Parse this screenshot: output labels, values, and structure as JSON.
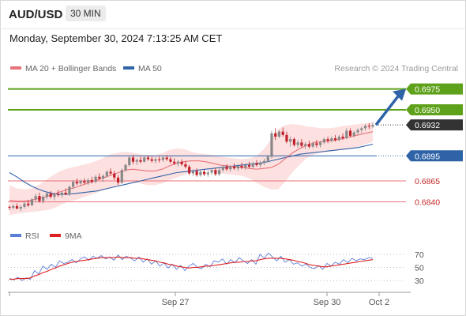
{
  "header": {
    "symbol": "AUD/USD",
    "timeframe": "30 MIN",
    "datetime": "Monday, September 30, 2024 7:13:25 AM CET"
  },
  "legend": {
    "ma20_label": "MA 20 + Bollinger Bands",
    "ma50_label": "MA 50",
    "copyright": "Research © 2024 Trading Central",
    "rsi_label": "RSI",
    "ma9_label": "9MA"
  },
  "colors": {
    "ma20": "#e8737a",
    "ma50": "#2f63a8",
    "bands": "#fde0e0",
    "resistance": "#5ea11a",
    "pivot": "#2f63a8",
    "support": "#e8737a",
    "current": "#333333",
    "arrow": "#2f63a8",
    "rsi": "#5b7fd6",
    "rsi_ma": "#e02020",
    "bull": "#888888",
    "bear": "#c0202a"
  },
  "chart_data": [
    {
      "type": "candlestick",
      "x_labels": [
        "Sep 27",
        "Sep 30",
        "Oct 2"
      ],
      "levels": [
        {
          "value": "0.6975",
          "kind": "resistance"
        },
        {
          "value": "0.6950",
          "kind": "resistance"
        },
        {
          "value": "0.6932",
          "kind": "current"
        },
        {
          "value": "0.6895",
          "kind": "pivot"
        },
        {
          "value": "0.6865",
          "kind": "support"
        },
        {
          "value": "0.6840",
          "kind": "support"
        }
      ],
      "ylim": [
        0.6815,
        0.6985
      ],
      "candles": [
        [
          0.6834,
          0.6836,
          0.683,
          0.6833
        ],
        [
          0.6833,
          0.6837,
          0.6831,
          0.6835
        ],
        [
          0.6835,
          0.6838,
          0.6831,
          0.6832
        ],
        [
          0.6832,
          0.6836,
          0.6829,
          0.6834
        ],
        [
          0.6834,
          0.684,
          0.6832,
          0.6838
        ],
        [
          0.6838,
          0.6842,
          0.6834,
          0.6836
        ],
        [
          0.6836,
          0.6845,
          0.6835,
          0.6843
        ],
        [
          0.6843,
          0.685,
          0.684,
          0.6847
        ],
        [
          0.6847,
          0.6851,
          0.6839,
          0.6841
        ],
        [
          0.6841,
          0.6848,
          0.6838,
          0.6846
        ],
        [
          0.6846,
          0.6852,
          0.6843,
          0.685
        ],
        [
          0.685,
          0.6853,
          0.6844,
          0.6846
        ],
        [
          0.6846,
          0.6851,
          0.6842,
          0.6849
        ],
        [
          0.6849,
          0.6854,
          0.6846,
          0.6848
        ],
        [
          0.6848,
          0.6852,
          0.6845,
          0.6851
        ],
        [
          0.6851,
          0.6856,
          0.6848,
          0.6849
        ],
        [
          0.6849,
          0.686,
          0.6847,
          0.6858
        ],
        [
          0.6858,
          0.6866,
          0.6855,
          0.6864
        ],
        [
          0.6864,
          0.6868,
          0.686,
          0.6862
        ],
        [
          0.6862,
          0.6867,
          0.6859,
          0.6865
        ],
        [
          0.6865,
          0.6868,
          0.6861,
          0.6863
        ],
        [
          0.6863,
          0.6868,
          0.686,
          0.6866
        ],
        [
          0.6866,
          0.687,
          0.6862,
          0.6864
        ],
        [
          0.6864,
          0.6872,
          0.6862,
          0.687
        ],
        [
          0.687,
          0.6874,
          0.6866,
          0.6868
        ],
        [
          0.6868,
          0.6873,
          0.6864,
          0.6871
        ],
        [
          0.6871,
          0.6878,
          0.6869,
          0.6876
        ],
        [
          0.6876,
          0.688,
          0.6872,
          0.6874
        ],
        [
          0.6874,
          0.6877,
          0.6866,
          0.6869
        ],
        [
          0.6869,
          0.6872,
          0.686,
          0.6863
        ],
        [
          0.6863,
          0.688,
          0.6862,
          0.6878
        ],
        [
          0.6878,
          0.6886,
          0.6876,
          0.6884
        ],
        [
          0.6884,
          0.6895,
          0.6882,
          0.6893
        ],
        [
          0.6893,
          0.6896,
          0.6885,
          0.6888
        ],
        [
          0.6888,
          0.6892,
          0.6884,
          0.689
        ],
        [
          0.689,
          0.6894,
          0.6886,
          0.6888
        ],
        [
          0.6888,
          0.6895,
          0.6887,
          0.6893
        ],
        [
          0.6893,
          0.6896,
          0.6889,
          0.6891
        ],
        [
          0.6891,
          0.6894,
          0.6887,
          0.6889
        ],
        [
          0.6889,
          0.6893,
          0.6886,
          0.6891
        ],
        [
          0.6891,
          0.6894,
          0.6887,
          0.689
        ],
        [
          0.689,
          0.6895,
          0.6888,
          0.6893
        ],
        [
          0.6893,
          0.6896,
          0.6889,
          0.6891
        ],
        [
          0.6891,
          0.6894,
          0.6886,
          0.6888
        ],
        [
          0.6888,
          0.6892,
          0.6884,
          0.6886
        ],
        [
          0.6886,
          0.689,
          0.6882,
          0.6888
        ],
        [
          0.6888,
          0.6891,
          0.6883,
          0.6885
        ],
        [
          0.6885,
          0.6889,
          0.688,
          0.6882
        ],
        [
          0.6882,
          0.6884,
          0.6872,
          0.6874
        ],
        [
          0.6874,
          0.6879,
          0.6871,
          0.6877
        ],
        [
          0.6877,
          0.688,
          0.687,
          0.6872
        ],
        [
          0.6872,
          0.6878,
          0.687,
          0.6876
        ],
        [
          0.6876,
          0.6879,
          0.6871,
          0.6873
        ],
        [
          0.6873,
          0.6878,
          0.687,
          0.6875
        ],
        [
          0.6875,
          0.688,
          0.6872,
          0.6878
        ],
        [
          0.6878,
          0.6881,
          0.6871,
          0.6873
        ],
        [
          0.6873,
          0.688,
          0.6871,
          0.6878
        ],
        [
          0.6878,
          0.6884,
          0.6876,
          0.6882
        ],
        [
          0.6882,
          0.6885,
          0.6877,
          0.6879
        ],
        [
          0.6879,
          0.6884,
          0.6876,
          0.6882
        ],
        [
          0.6882,
          0.6886,
          0.6878,
          0.688
        ],
        [
          0.688,
          0.6885,
          0.6877,
          0.6883
        ],
        [
          0.6883,
          0.6887,
          0.6879,
          0.6881
        ],
        [
          0.6881,
          0.6886,
          0.6878,
          0.6884
        ],
        [
          0.6884,
          0.6888,
          0.688,
          0.6882
        ],
        [
          0.6882,
          0.6888,
          0.688,
          0.6886
        ],
        [
          0.6886,
          0.689,
          0.6882,
          0.6884
        ],
        [
          0.6884,
          0.6889,
          0.6881,
          0.6887
        ],
        [
          0.6887,
          0.6892,
          0.6884,
          0.6889
        ],
        [
          0.6889,
          0.6896,
          0.6887,
          0.6894
        ],
        [
          0.6894,
          0.6925,
          0.6892,
          0.6922
        ],
        [
          0.6922,
          0.6928,
          0.6914,
          0.6918
        ],
        [
          0.6918,
          0.6926,
          0.6916,
          0.6924
        ],
        [
          0.6924,
          0.6929,
          0.6918,
          0.692
        ],
        [
          0.692,
          0.6924,
          0.691,
          0.6912
        ],
        [
          0.6912,
          0.6918,
          0.6906,
          0.6915
        ],
        [
          0.6915,
          0.6917,
          0.6906,
          0.6908
        ],
        [
          0.6908,
          0.6914,
          0.6905,
          0.6911
        ],
        [
          0.6911,
          0.6915,
          0.6905,
          0.6907
        ],
        [
          0.6907,
          0.6912,
          0.6903,
          0.6909
        ],
        [
          0.6909,
          0.6913,
          0.6904,
          0.6906
        ],
        [
          0.6906,
          0.6912,
          0.6904,
          0.691
        ],
        [
          0.691,
          0.6914,
          0.6905,
          0.6908
        ],
        [
          0.6908,
          0.6913,
          0.6905,
          0.6911
        ],
        [
          0.6911,
          0.6917,
          0.6909,
          0.6915
        ],
        [
          0.6915,
          0.6918,
          0.691,
          0.6913
        ],
        [
          0.6913,
          0.6918,
          0.6911,
          0.6916
        ],
        [
          0.6916,
          0.692,
          0.6912,
          0.6914
        ],
        [
          0.6914,
          0.692,
          0.6912,
          0.6918
        ],
        [
          0.6918,
          0.6922,
          0.6914,
          0.6916
        ],
        [
          0.6916,
          0.6928,
          0.6915,
          0.6925
        ],
        [
          0.6925,
          0.6928,
          0.6917,
          0.6919
        ],
        [
          0.6919,
          0.6925,
          0.6917,
          0.6923
        ],
        [
          0.6923,
          0.6928,
          0.692,
          0.6926
        ],
        [
          0.6926,
          0.693,
          0.6922,
          0.6928
        ],
        [
          0.6928,
          0.6933,
          0.6925,
          0.6931
        ],
        [
          0.6931,
          0.6934,
          0.6927,
          0.693
        ],
        [
          0.693,
          0.6935,
          0.6928,
          0.6932
        ]
      ],
      "ma20": [
        0.6842,
        0.6841,
        0.6841,
        0.6842,
        0.6844,
        0.6846,
        0.6849,
        0.6852,
        0.6855,
        0.6857,
        0.686,
        0.6863,
        0.6866,
        0.6869,
        0.6872,
        0.6875,
        0.6878,
        0.6879,
        0.6878,
        0.6877,
        0.6877,
        0.6879,
        0.6883,
        0.6886,
        0.6888,
        0.6889,
        0.6889,
        0.6888,
        0.6886,
        0.6884,
        0.6883,
        0.6882,
        0.6881,
        0.688,
        0.6879,
        0.688,
        0.6881,
        0.6885,
        0.6892,
        0.6899,
        0.6904,
        0.6908,
        0.6911,
        0.6912,
        0.6913,
        0.6914,
        0.6916,
        0.6918,
        0.692,
        0.6922,
        0.6924
      ],
      "bb_upper": [
        0.686,
        0.6856,
        0.6855,
        0.6856,
        0.686,
        0.6866,
        0.6872,
        0.6877,
        0.688,
        0.6882,
        0.6884,
        0.6886,
        0.6889,
        0.6893,
        0.6897,
        0.6899,
        0.69,
        0.6899,
        0.6897,
        0.6896,
        0.6896,
        0.6898,
        0.6902,
        0.6904,
        0.6903,
        0.69,
        0.6898,
        0.6897,
        0.6896,
        0.6894,
        0.6893,
        0.6892,
        0.6891,
        0.6892,
        0.6895,
        0.6903,
        0.6915,
        0.6927,
        0.6932,
        0.6933,
        0.6932,
        0.693,
        0.6929,
        0.6928,
        0.6928,
        0.6929,
        0.6931,
        0.6932,
        0.6933,
        0.6934,
        0.6935
      ],
      "bb_lower": [
        0.6824,
        0.6826,
        0.6827,
        0.6828,
        0.6829,
        0.683,
        0.6832,
        0.6836,
        0.684,
        0.6842,
        0.6845,
        0.6848,
        0.6851,
        0.6854,
        0.6857,
        0.686,
        0.6863,
        0.6864,
        0.6862,
        0.686,
        0.686,
        0.6862,
        0.6866,
        0.6869,
        0.6872,
        0.6876,
        0.6879,
        0.6879,
        0.6877,
        0.6874,
        0.6873,
        0.6872,
        0.6871,
        0.6868,
        0.6863,
        0.6858,
        0.6855,
        0.6855,
        0.6865,
        0.6876,
        0.6885,
        0.6893,
        0.6897,
        0.6899,
        0.69,
        0.6901,
        0.6902,
        0.6904,
        0.6906,
        0.6909,
        0.6912
      ],
      "ma50": [
        0.6875,
        0.687,
        0.6864,
        0.6859,
        0.6855,
        0.6852,
        0.685,
        0.6849,
        0.6849,
        0.685,
        0.6851,
        0.6852,
        0.6853,
        0.6855,
        0.6857,
        0.6859,
        0.6861,
        0.6863,
        0.6865,
        0.6867,
        0.6869,
        0.6871,
        0.6873,
        0.6875,
        0.6876,
        0.6877,
        0.6878,
        0.6879,
        0.688,
        0.6881,
        0.6882,
        0.6883,
        0.6884,
        0.6885,
        0.6886,
        0.6887,
        0.6889,
        0.6891,
        0.6893,
        0.6895,
        0.6897,
        0.6898,
        0.6899,
        0.69,
        0.6901,
        0.6902,
        0.6903,
        0.6904,
        0.6905,
        0.6907,
        0.6909
      ]
    },
    {
      "type": "line",
      "yticks": [
        "70",
        "50",
        "30"
      ],
      "ylim": [
        18,
        82
      ],
      "series": [
        {
          "name": "RSI",
          "values": [
            33,
            31,
            35,
            30,
            34,
            32,
            45,
            40,
            52,
            47,
            55,
            50,
            60,
            56,
            58,
            62,
            57,
            63,
            66,
            61,
            67,
            64,
            68,
            63,
            66,
            61,
            69,
            62,
            67,
            64,
            60,
            66,
            58,
            63,
            55,
            60,
            52,
            57,
            49,
            55,
            47,
            53,
            45,
            52,
            56,
            50,
            48,
            55,
            51,
            60,
            58,
            63,
            55,
            62,
            57,
            65,
            60,
            56,
            62,
            55,
            70,
            64,
            72,
            66,
            60,
            67,
            58,
            62,
            55,
            57,
            52,
            55,
            50,
            48,
            53,
            47,
            56,
            52,
            58,
            55,
            62,
            57,
            64,
            60,
            63,
            62,
            65,
            64
          ]
        },
        {
          "name": "9MA",
          "values": [
            32,
            32,
            33,
            33,
            33,
            34,
            37,
            39,
            42,
            44,
            47,
            49,
            52,
            54,
            56,
            58,
            59,
            60,
            61,
            62,
            63,
            64,
            65,
            65,
            65,
            65,
            66,
            65,
            65,
            65,
            64,
            64,
            63,
            62,
            61,
            60,
            58,
            57,
            55,
            54,
            52,
            51,
            50,
            49,
            50,
            50,
            51,
            52,
            52,
            53,
            54,
            55,
            56,
            57,
            58,
            58,
            59,
            59,
            60,
            60,
            62,
            63,
            64,
            64,
            64,
            64,
            63,
            62,
            61,
            59,
            58,
            56,
            54,
            53,
            52,
            51,
            51,
            52,
            53,
            54,
            55,
            56,
            57,
            58,
            59,
            60,
            61,
            62
          ]
        }
      ]
    }
  ]
}
